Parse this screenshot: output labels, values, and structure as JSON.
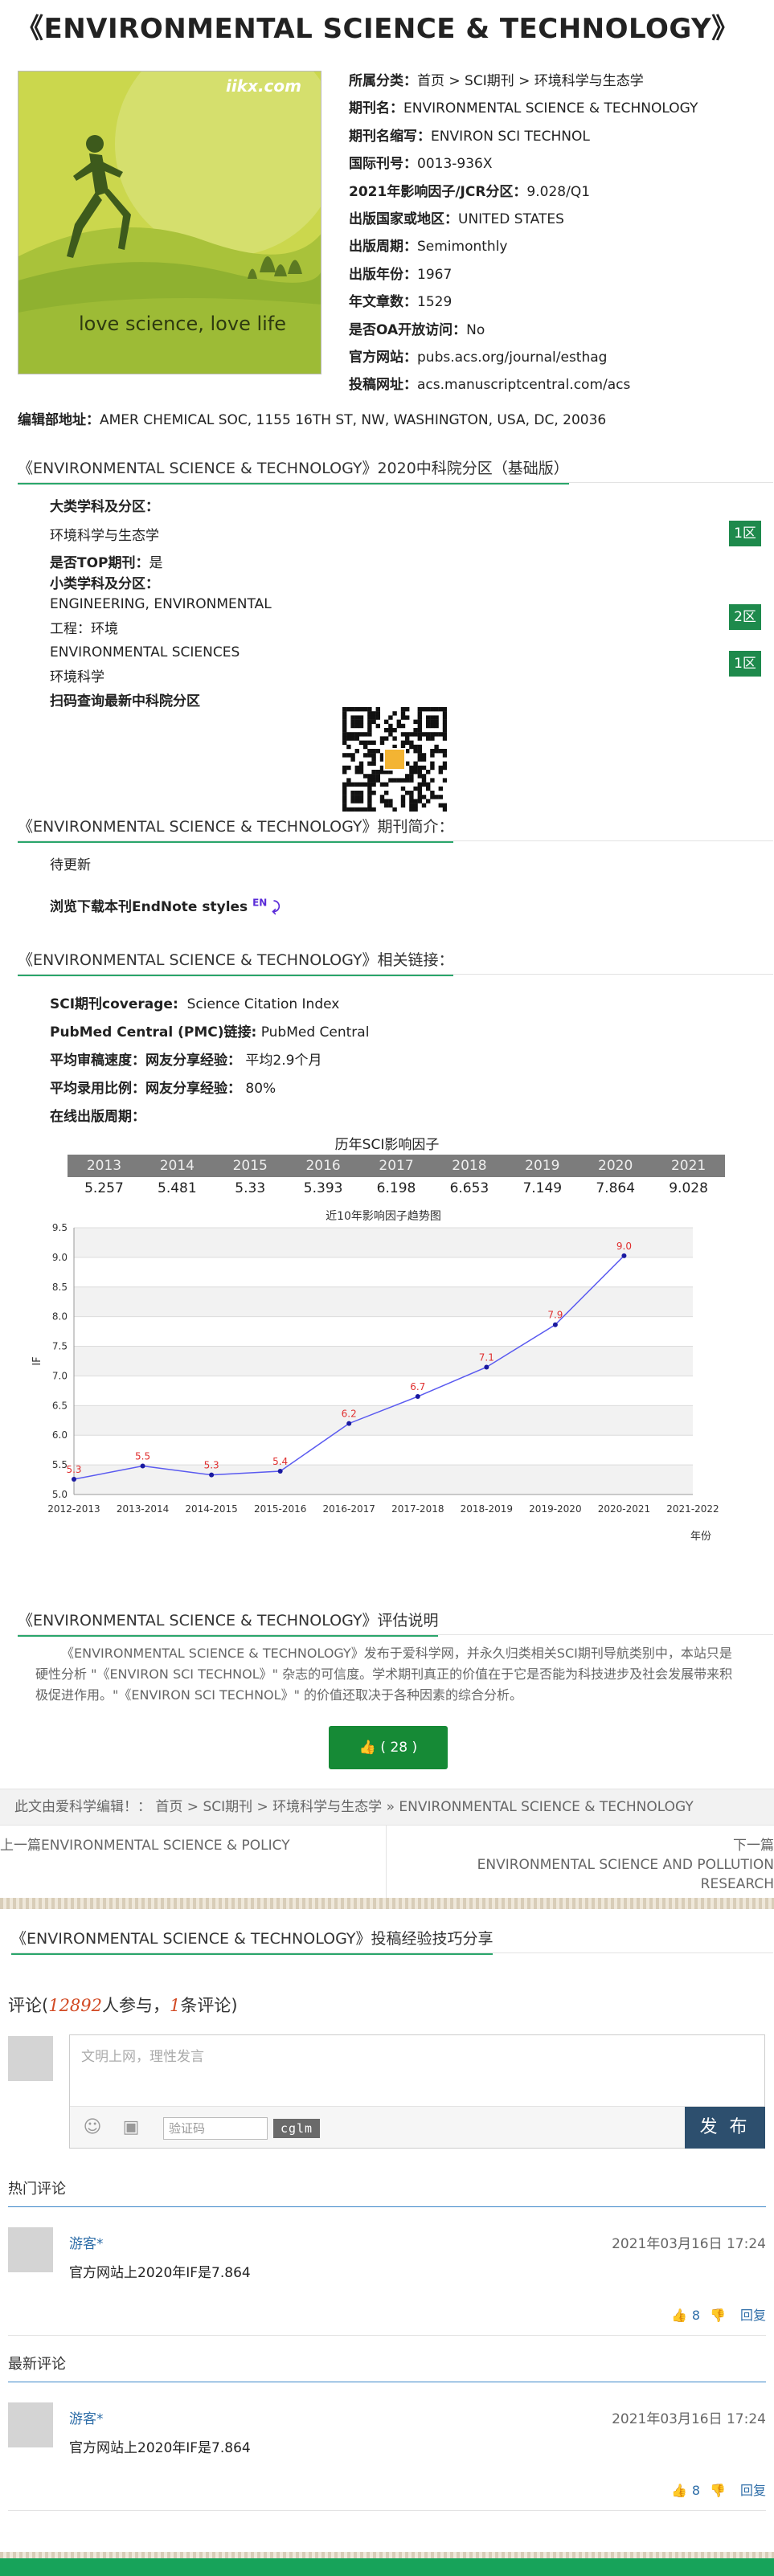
{
  "title": "《ENVIRONMENTAL SCIENCE & TECHNOLOGY》",
  "cover": {
    "logo": "iikx.com",
    "tagline": "love science, love life"
  },
  "info": [
    {
      "label": "所属分类：",
      "value": "首页 > SCI期刊 > 环境科学与生态学"
    },
    {
      "label": "期刊名：",
      "value": "ENVIRONMENTAL SCIENCE & TECHNOLOGY"
    },
    {
      "label": "期刊名缩写：",
      "value": "ENVIRON SCI TECHNOL"
    },
    {
      "label": "国际刊号：",
      "value": "0013-936X"
    },
    {
      "label": "2021年影响因子/JCR分区：",
      "value": "9.028/Q1"
    },
    {
      "label": "出版国家或地区：",
      "value": "UNITED STATES"
    },
    {
      "label": "出版周期：",
      "value": "Semimonthly"
    },
    {
      "label": "出版年份：",
      "value": "1967"
    },
    {
      "label": "年文章数：",
      "value": "1529"
    },
    {
      "label": "是否OA开放访问：",
      "value": "No"
    },
    {
      "label": "官方网站：",
      "value": "pubs.acs.org/journal/esthag"
    },
    {
      "label": "投稿网址：",
      "value": "acs.manuscriptcentral.com/acs"
    }
  ],
  "editor_address": {
    "label": "编辑部地址：",
    "value": "AMER CHEMICAL SOC, 1155 16TH ST, NW, WASHINGTON, USA, DC, 20036"
  },
  "cas": {
    "heading": "《ENVIRONMENTAL SCIENCE & TECHNOLOGY》2020中科院分区（基础版）",
    "major_label": "大类学科及分区：",
    "major_subject": "环境科学与生态学",
    "major_zone": "1区",
    "top_label": "是否TOP期刊：",
    "top_value": "是",
    "minor_label": "小类学科及分区：",
    "minor": [
      {
        "en": "ENGINEERING, ENVIRONMENTAL",
        "cn": "工程：环境",
        "zone": "2区"
      },
      {
        "en": "ENVIRONMENTAL SCIENCES",
        "cn": "环境科学",
        "zone": "1区"
      }
    ],
    "scan_label": "扫码查询最新中科院分区"
  },
  "intro": {
    "heading": "《ENVIRONMENTAL SCIENCE & TECHNOLOGY》期刊简介：",
    "text": "待更新",
    "endnote": "浏览下载本刊EndNote styles",
    "endnote_badge": "EN"
  },
  "links": {
    "heading": "《ENVIRONMENTAL SCIENCE & TECHNOLOGY》相关链接：",
    "rows": [
      {
        "label": "SCI期刊coverage:",
        "value": "Science Citation Index"
      },
      {
        "label": "PubMed Central (PMC)链接:",
        "value": "PubMed Central"
      },
      {
        "label": "平均审稿速度：",
        "label2": "网友分享经验：",
        "value": "平均2.9个月"
      },
      {
        "label": "平均录用比例：",
        "label2": "网友分享经验：",
        "value": "80%"
      },
      {
        "label": "在线出版周期：",
        "value": ""
      }
    ]
  },
  "if_table": {
    "caption": "历年SCI影响因子",
    "years": [
      "2013",
      "2014",
      "2015",
      "2016",
      "2017",
      "2018",
      "2019",
      "2020",
      "2021"
    ],
    "values": [
      "5.257",
      "5.481",
      "5.33",
      "5.393",
      "6.198",
      "6.653",
      "7.149",
      "7.864",
      "9.028"
    ]
  },
  "chart_data": {
    "type": "line",
    "title": "近10年影响因子趋势图",
    "xlabel": "年份",
    "ylabel": "IF",
    "ylim": [
      5.0,
      9.5
    ],
    "yticks": [
      "5.0",
      "5.5",
      "6.0",
      "6.5",
      "7.0",
      "7.5",
      "8.0",
      "8.5",
      "9.0",
      "9.5"
    ],
    "categories": [
      "2012-2013",
      "2013-2014",
      "2014-2015",
      "2015-2016",
      "2016-2017",
      "2017-2018",
      "2018-2019",
      "2019-2020",
      "2020-2021",
      "2021-2022"
    ],
    "values": [
      5.257,
      5.481,
      5.33,
      5.393,
      6.198,
      6.653,
      7.149,
      7.864,
      9.028,
      null
    ],
    "point_labels": [
      "5.3",
      "5.5",
      "5.3",
      "5.4",
      "6.2",
      "6.7",
      "7.1",
      "7.9",
      "9.0",
      ""
    ],
    "grid": true,
    "line_color": "#5a5af0",
    "point_color": "#1a1aa0",
    "label_color": "#e03030"
  },
  "evaluation": {
    "heading": "《ENVIRONMENTAL SCIENCE & TECHNOLOGY》评估说明",
    "text": "《ENVIRONMENTAL SCIENCE & TECHNOLOGY》发布于爱科学网，并永久归类相关SCI期刊导航类别中，本站只是硬性分析 \"《ENVIRON SCI TECHNOL》\" 杂志的可信度。学术期刊真正的价值在于它是否能为科技进步及社会发展带来积极促进作用。\"《ENVIRON SCI TECHNOL》\" 的价值还取决于各种因素的综合分析。",
    "like_label": "( 28 )"
  },
  "breadcrumb": "此文由爱科学编辑！：  首页 > SCI期刊 > 环境科学与生态学 » ENVIRONMENTAL SCIENCE & TECHNOLOGY",
  "prev": {
    "label": "上一篇",
    "title": "ENVIRONMENTAL SCIENCE & POLICY"
  },
  "next": {
    "label": "下一篇",
    "title": "ENVIRONMENTAL SCIENCE AND POLLUTION RESEARCH"
  },
  "tips_heading": "《ENVIRONMENTAL SCIENCE & TECHNOLOGY》投稿经验技巧分享",
  "comments": {
    "title_prefix": "评论(",
    "participants": "12892",
    "title_mid": "人参与，",
    "count": "1",
    "title_suffix": "条评论)",
    "placeholder": "文明上网，理性发言",
    "captcha_placeholder": "验证码",
    "captcha_code": "cglm",
    "post_label": "发 布",
    "hot_label": "热门评论",
    "latest_label": "最新评论",
    "hot": {
      "user": "游客*",
      "time": "2021年03月16日 17:24",
      "text": "官方网站上2020年IF是7.864",
      "likes": "8",
      "reply": "回复"
    },
    "latest": {
      "user": "游客*",
      "time": "2021年03月16日 17:24",
      "text": "官方网站上2020年IF是7.864",
      "likes": "8",
      "reply": "回复"
    }
  }
}
